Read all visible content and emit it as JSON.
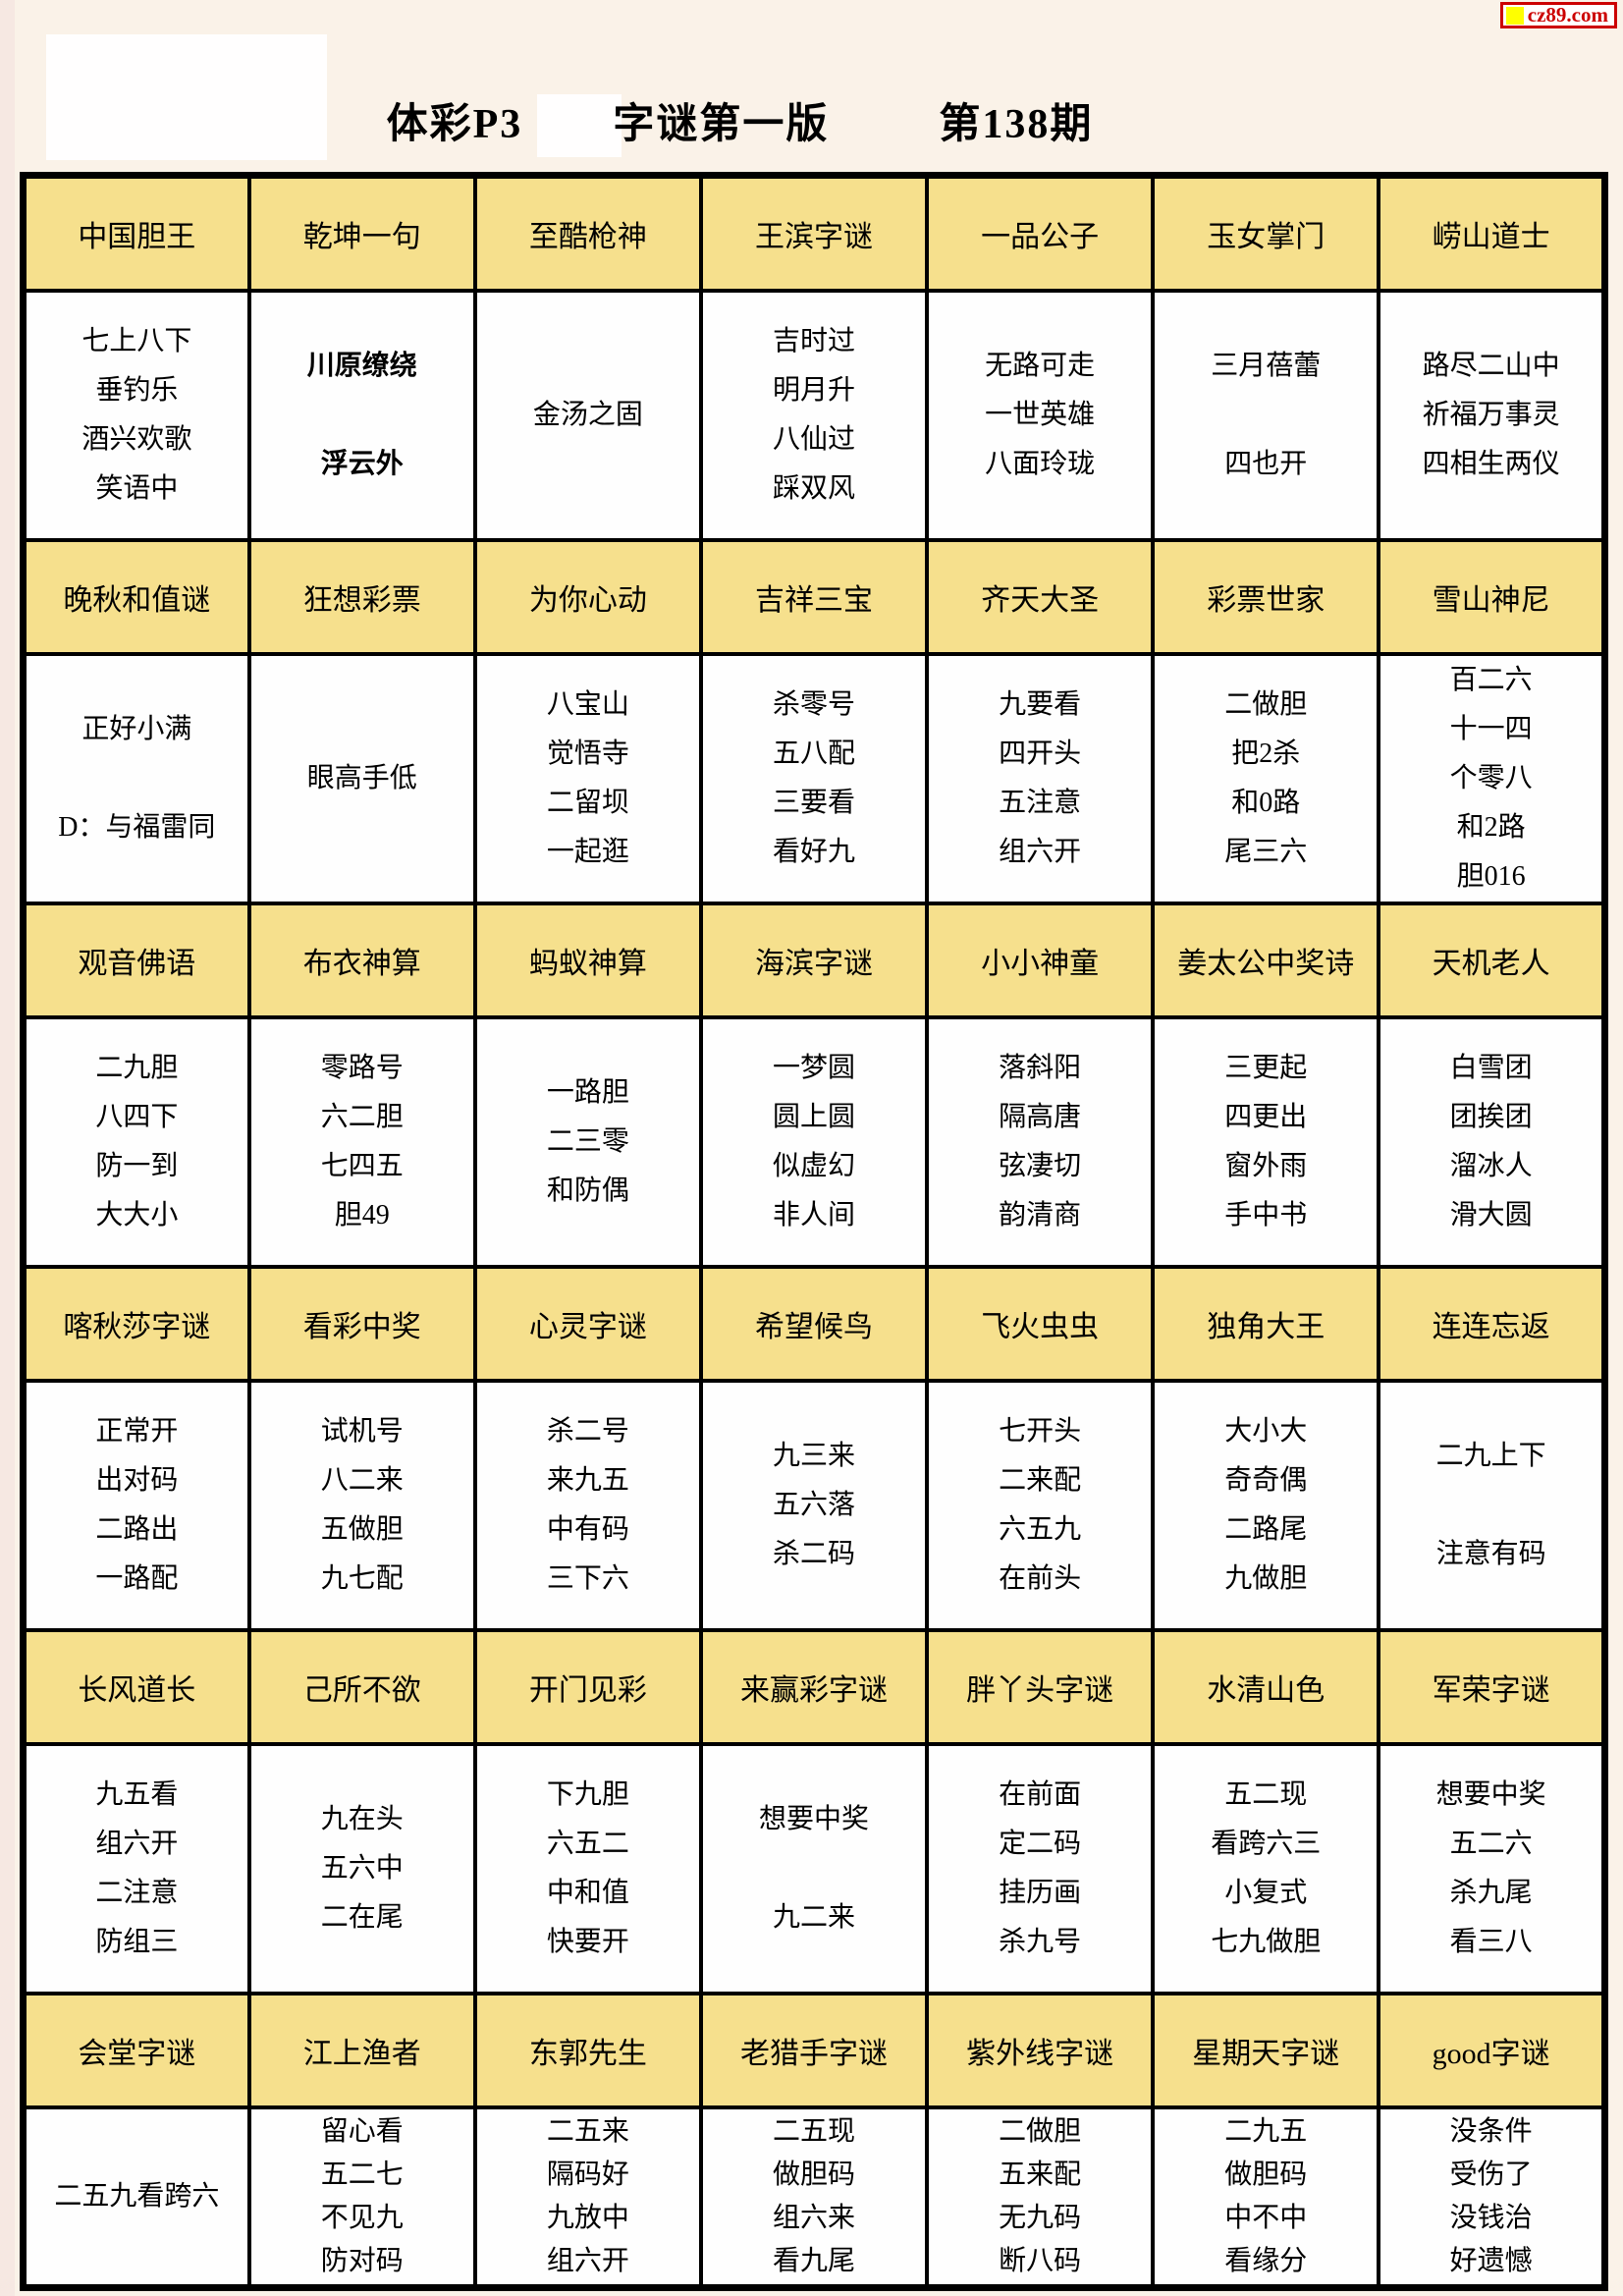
{
  "page": {
    "title_parts": [
      "体彩P3",
      "字谜第一版",
      "第138期"
    ]
  },
  "watermark": {
    "text": "cz89.com",
    "square_color": "#ffff00",
    "border_color": "#cc0000",
    "text_color": "#cc0000"
  },
  "colors": {
    "page_bg": "#faf2e8",
    "header_bg": "#f6e08d",
    "cell_bg": "#fefefe",
    "border": "#000000"
  },
  "table": {
    "bold_cells": [
      [
        0,
        1
      ]
    ],
    "sections": [
      {
        "headers": [
          "中国胆王",
          "乾坤一句",
          "至酷枪神",
          "王滨字谜",
          "一品公子",
          "玉女掌门",
          "崂山道士"
        ],
        "cells": [
          [
            "七上八下",
            "垂钓乐",
            "酒兴欢歌",
            "笑语中"
          ],
          [
            "川原缭绕",
            "",
            "浮云外"
          ],
          [
            "金汤之固"
          ],
          [
            "吉时过",
            "明月升",
            "八仙过",
            "踩双风"
          ],
          [
            "无路可走",
            "一世英雄",
            "八面玲珑"
          ],
          [
            "三月蓓蕾",
            "",
            "四也开"
          ],
          [
            "路尽二山中",
            "祈福万事灵",
            "四相生两仪"
          ]
        ]
      },
      {
        "headers": [
          "晚秋和值谜",
          "狂想彩票",
          "为你心动",
          "吉祥三宝",
          "齐天大圣",
          "彩票世家",
          "雪山神尼"
        ],
        "cells": [
          [
            "正好小满",
            "",
            "D：与福雷同"
          ],
          [
            "眼高手低"
          ],
          [
            "八宝山",
            "觉悟寺",
            "二留坝",
            "一起逛"
          ],
          [
            "杀零号",
            "五八配",
            "三要看",
            "看好九"
          ],
          [
            "九要看",
            "四开头",
            "五注意",
            "组六开"
          ],
          [
            "二做胆",
            "把2杀",
            "和0路",
            "尾三六"
          ],
          [
            "百二六",
            "十一四",
            "个零八",
            "和2路",
            "胆016"
          ]
        ]
      },
      {
        "headers": [
          "观音佛语",
          "布衣神算",
          "蚂蚁神算",
          "海滨字谜",
          "小小神童",
          "姜太公中奖诗",
          "天机老人"
        ],
        "cells": [
          [
            "二九胆",
            "八四下",
            "防一到",
            "大大小"
          ],
          [
            "零路号",
            "六二胆",
            "七四五",
            "胆49"
          ],
          [
            "一路胆",
            "二三零",
            "和防偶"
          ],
          [
            "一梦圆",
            "圆上圆",
            "似虚幻",
            "非人间"
          ],
          [
            "落斜阳",
            "隔高唐",
            "弦凄切",
            "韵清商"
          ],
          [
            "三更起",
            "四更出",
            "窗外雨",
            "手中书"
          ],
          [
            "白雪团",
            "团挨团",
            "溜冰人",
            "滑大圆"
          ]
        ]
      },
      {
        "headers": [
          "喀秋莎字谜",
          "看彩中奖",
          "心灵字谜",
          "希望候鸟",
          "飞火虫虫",
          "独角大王",
          "连连忘返"
        ],
        "cells": [
          [
            "正常开",
            "出对码",
            "二路出",
            "一路配"
          ],
          [
            "试机号",
            "八二来",
            "五做胆",
            "九七配"
          ],
          [
            "杀二号",
            "来九五",
            "中有码",
            "三下六"
          ],
          [
            "九三来",
            "五六落",
            "杀二码"
          ],
          [
            "七开头",
            "二来配",
            "六五九",
            "在前头"
          ],
          [
            "大小大",
            "奇奇偶",
            "二路尾",
            "九做胆"
          ],
          [
            "二九上下",
            "",
            "注意有码"
          ]
        ]
      },
      {
        "headers": [
          "长风道长",
          "己所不欲",
          "开门见彩",
          "来赢彩字谜",
          "胖丫头字谜",
          "水清山色",
          "军荣字谜"
        ],
        "cells": [
          [
            "九五看",
            "组六开",
            "二注意",
            "防组三"
          ],
          [
            "九在头",
            "五六中",
            "二在尾"
          ],
          [
            "下九胆",
            "六五二",
            "中和值",
            "快要开"
          ],
          [
            "想要中奖",
            "",
            "九二来"
          ],
          [
            "在前面",
            "定二码",
            "挂历画",
            "杀九号"
          ],
          [
            "五二现",
            "看跨六三",
            "小复式",
            "七九做胆"
          ],
          [
            "想要中奖",
            "五二六",
            "杀九尾",
            "看三八"
          ]
        ]
      },
      {
        "headers": [
          "会堂字谜",
          "江上渔者",
          "东郭先生",
          "老猎手字谜",
          "紫外线字谜",
          "星期天字谜",
          "good字谜"
        ],
        "cells": [
          [
            "二五九看跨六"
          ],
          [
            "留心看",
            "五二七",
            "不见九",
            "防对码"
          ],
          [
            "二五来",
            "隔码好",
            "九放中",
            "组六开"
          ],
          [
            "二五现",
            "做胆码",
            "组六来",
            "看九尾"
          ],
          [
            "二做胆",
            "五来配",
            "无九码",
            "断八码"
          ],
          [
            "二九五",
            "做胆码",
            "中不中",
            "看缘分"
          ],
          [
            "没条件",
            "受伤了",
            "没钱治",
            "好遗憾"
          ]
        ]
      }
    ]
  }
}
